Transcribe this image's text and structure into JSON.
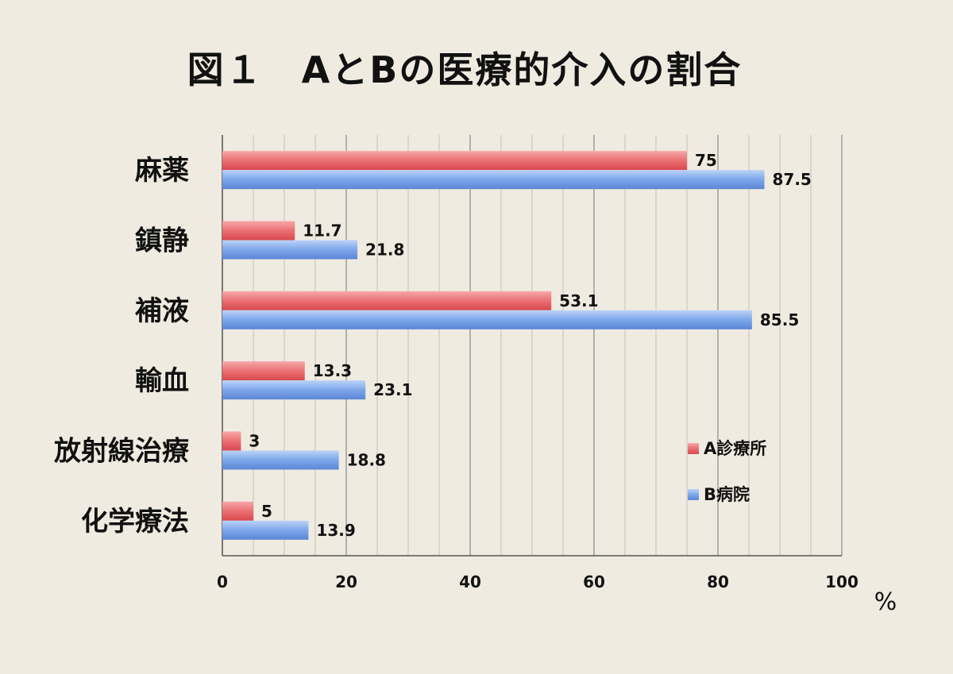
{
  "chart_data": {
    "type": "bar",
    "orientation": "horizontal",
    "title": "図１　AとBの医療的介入の割合",
    "unit": "%",
    "categories": [
      "麻薬",
      "鎮静",
      "補液",
      "輸血",
      "放射線治療",
      "化学療法"
    ],
    "series": [
      {
        "name": "A診療所",
        "color": "#e8666a",
        "values": [
          75,
          11.7,
          53.1,
          13.3,
          3,
          5
        ]
      },
      {
        "name": "B病院",
        "color": "#6f9be6",
        "values": [
          87.5,
          21.8,
          85.5,
          23.1,
          18.8,
          13.9
        ]
      }
    ],
    "xlim": [
      0,
      100
    ],
    "xticks": [
      0,
      20,
      40,
      60,
      80,
      100
    ],
    "grid": true,
    "legend_position": "right"
  }
}
